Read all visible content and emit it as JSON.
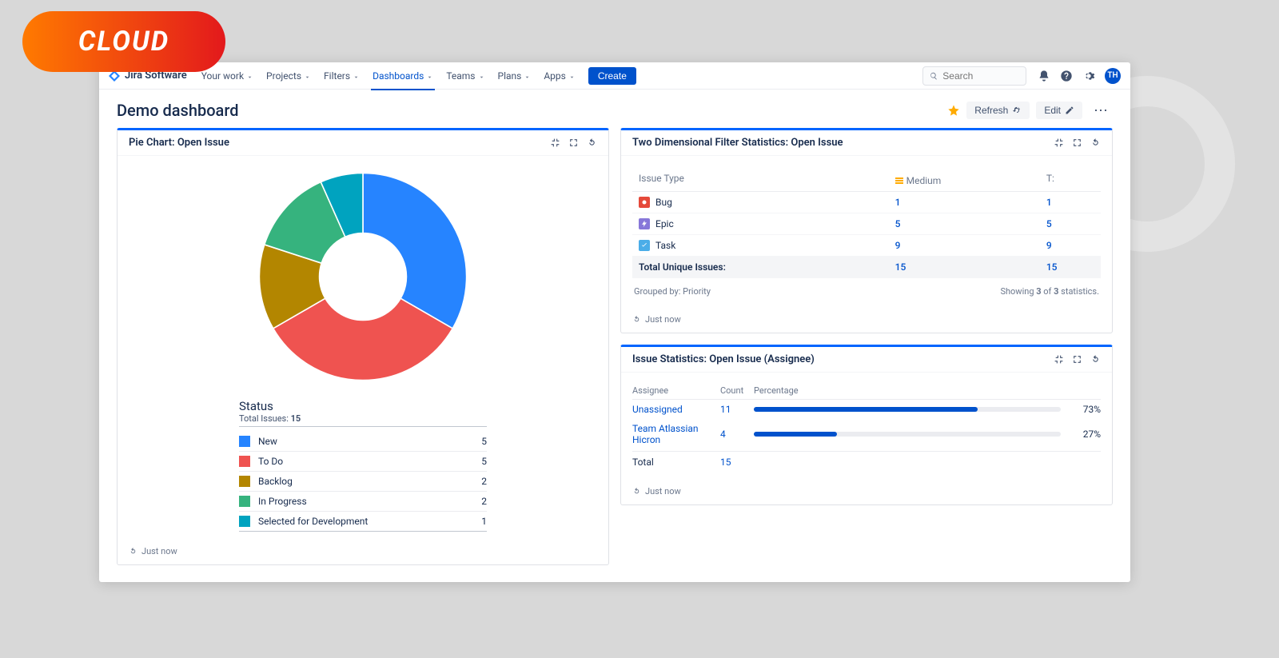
{
  "frame": {
    "outer_bg": "#d8d8d8",
    "ring_border": "#e3e3e3",
    "app_bg": "#ffffff",
    "app_shadow": "rgba(0,0,0,.15)"
  },
  "badge": {
    "text": "CLOUD",
    "gradient_from": "#ff7a00",
    "gradient_to": "#e3191c",
    "text_color": "#ffffff"
  },
  "topnav": {
    "brand": "Jira Software",
    "items": [
      {
        "label": "Your work",
        "active": false
      },
      {
        "label": "Projects",
        "active": false
      },
      {
        "label": "Filters",
        "active": false
      },
      {
        "label": "Dashboards",
        "active": true
      },
      {
        "label": "Teams",
        "active": false
      },
      {
        "label": "Plans",
        "active": false
      },
      {
        "label": "Apps",
        "active": false
      }
    ],
    "create_label": "Create",
    "search_placeholder": "Search",
    "avatar_initials": "TH",
    "colors": {
      "primary": "#0052cc",
      "text": "#42526e",
      "border": "#dfe1e6"
    }
  },
  "titlebar": {
    "title": "Demo dashboard",
    "refresh_label": "Refresh",
    "edit_label": "Edit",
    "star_color": "#ffab00"
  },
  "gadgets": {
    "common": {
      "accent_color": "#0065ff",
      "just_now": "Just now"
    },
    "pie": {
      "title": "Pie Chart: Open Issue",
      "legend_title": "Status",
      "total_label": "Total Issues:",
      "total_value": "15",
      "center_hole_ratio": 0.42,
      "slices": [
        {
          "label": "New",
          "value": 5,
          "color": "#2684ff",
          "angle": 120
        },
        {
          "label": "To Do",
          "value": 5,
          "color": "#ef5350",
          "angle": 120
        },
        {
          "label": "Backlog",
          "value": 2,
          "color": "#b38600",
          "angle": 48
        },
        {
          "label": "In Progress",
          "value": 2,
          "color": "#36b37e",
          "angle": 48
        },
        {
          "label": "Selected for Development",
          "value": 1,
          "color": "#00a3bf",
          "angle": 24
        }
      ]
    },
    "two_d": {
      "title": "Two Dimensional Filter Statistics: Open Issue",
      "col_issue_type": "Issue Type",
      "col_medium": "Medium",
      "col_t": "T:",
      "rows": [
        {
          "type": "Bug",
          "icon_bg": "#e5493a",
          "medium": "1",
          "t": "1"
        },
        {
          "type": "Epic",
          "icon_bg": "#8777d9",
          "medium": "5",
          "t": "5"
        },
        {
          "type": "Task",
          "icon_bg": "#4bade8",
          "medium": "9",
          "t": "9"
        }
      ],
      "total_label": "Total Unique Issues:",
      "total_medium": "15",
      "total_t": "15",
      "grouped_by_label": "Grouped by:",
      "grouped_by_value": "Priority",
      "showing_prefix": "Showing",
      "showing_a": "3",
      "showing_mid": "of",
      "showing_b": "3",
      "showing_suffix": "statistics.",
      "priority_chip_color": "#ffab00"
    },
    "assignee": {
      "title": "Issue Statistics: Open Issue (Assignee)",
      "col_assignee": "Assignee",
      "col_count": "Count",
      "col_percentage": "Percentage",
      "rows": [
        {
          "name": "Unassigned",
          "count": "11",
          "pct": 73,
          "pct_label": "73%"
        },
        {
          "name": "Team Atlassian Hicron",
          "count": "4",
          "pct": 27,
          "pct_label": "27%"
        }
      ],
      "total_label": "Total",
      "total_count": "15",
      "bar_color": "#0052cc",
      "track_color": "#ebecf0"
    }
  }
}
